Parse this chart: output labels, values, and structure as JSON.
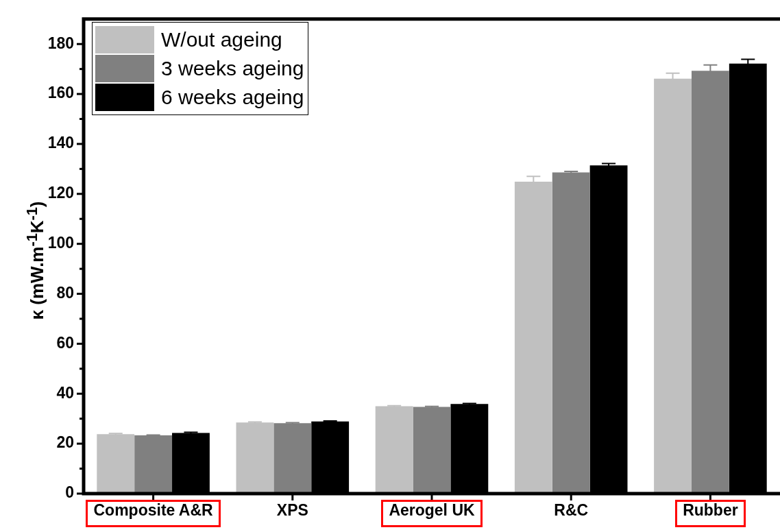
{
  "chart_data": {
    "type": "bar",
    "ylabel": "κ (mW.m$^{-1}$K$^{-1}$)",
    "categories": [
      "Composite A&R",
      "XPS",
      "Aerogel UK",
      "R&C",
      "Rubber"
    ],
    "series": [
      {
        "name": "W/out ageing",
        "color": "#c0c0c0",
        "values": [
          23.8,
          28.5,
          35.0,
          124.9,
          166.1
        ],
        "errors": [
          0.3,
          0.2,
          0.2,
          2.1,
          2.2
        ]
      },
      {
        "name": "3 weeks ageing",
        "color": "#808080",
        "values": [
          23.3,
          28.2,
          34.7,
          128.6,
          169.3
        ],
        "errors": [
          0.2,
          0.2,
          0.2,
          0.4,
          2.3
        ]
      },
      {
        "name": "6 weeks ageing",
        "color": "#000000",
        "values": [
          24.3,
          28.9,
          35.9,
          131.4,
          172.2
        ],
        "errors": [
          0.3,
          0.2,
          0.2,
          0.8,
          1.7
        ]
      }
    ],
    "ylim": [
      0,
      190
    ],
    "yticks": [
      0,
      {
        "value": 10,
        "label": null
      },
      20,
      {
        "value": 30,
        "label": null
      },
      40,
      {
        "value": 50,
        "label": null
      },
      60,
      {
        "value": 70,
        "label": null
      },
      80,
      {
        "value": 90,
        "label": null
      },
      100,
      {
        "value": 110,
        "label": null
      },
      120,
      {
        "value": 130,
        "label": null
      },
      140,
      {
        "value": 150,
        "label": null
      },
      160,
      {
        "value": 170,
        "label": null
      },
      180
    ],
    "legend": "top left",
    "grid": false
  }
}
